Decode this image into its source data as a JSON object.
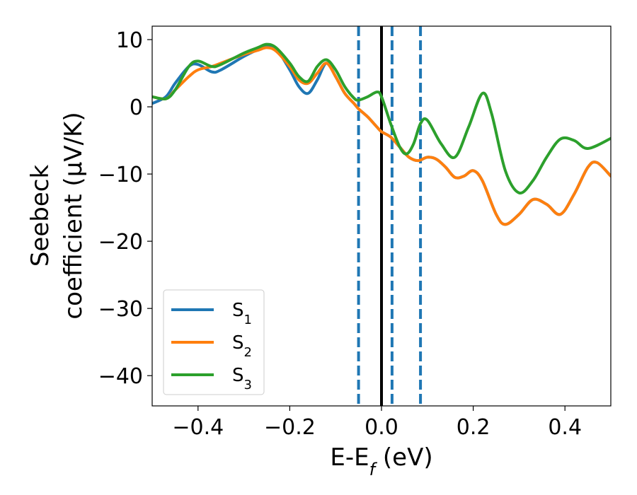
{
  "chart_data": {
    "type": "line",
    "title": "",
    "xlabel": {
      "main": "E-E",
      "sub": "f",
      "unit": " (eV)"
    },
    "ylabel": {
      "line1": "Seebeck",
      "line2": "coefficient  (μV/K)"
    },
    "xlim": [
      -0.5,
      0.5
    ],
    "ylim": [
      -44.5,
      12
    ],
    "xticks": [
      -0.4,
      -0.2,
      0.0,
      0.2,
      0.4
    ],
    "xtick_labels": [
      "−0.4",
      "−0.2",
      "0.0",
      "0.2",
      "0.4"
    ],
    "yticks": [
      10,
      0,
      -10,
      -20,
      -30,
      -40
    ],
    "ytick_labels": [
      "10",
      "0",
      "−10",
      "−20",
      "−30",
      "−40"
    ],
    "grid": false,
    "legend_position": "lower-left",
    "colors": {
      "S1": "#1f77b4",
      "S2": "#ff7f0e",
      "S3": "#2ca02c",
      "vline_dashed": "#1f77b4",
      "vline_solid": "#000000"
    },
    "series": [
      {
        "name": "S1",
        "base": "S",
        "sub": "1",
        "color": "#1f77b4",
        "x": [
          -0.5,
          -0.47,
          -0.45,
          -0.42,
          -0.4,
          -0.37,
          -0.35,
          -0.3,
          -0.27,
          -0.25,
          -0.23,
          -0.2,
          -0.18,
          -0.16,
          -0.14,
          -0.12,
          -0.1,
          -0.08,
          -0.06,
          -0.05,
          -0.03,
          -0.01,
          0.0,
          0.02,
          0.04,
          0.06,
          0.08,
          0.1,
          0.12,
          0.14,
          0.16,
          0.18,
          0.2,
          0.22,
          0.25,
          0.27,
          0.3,
          0.33,
          0.36,
          0.39,
          0.42,
          0.45,
          0.47,
          0.5
        ],
        "y": [
          0.5,
          1.5,
          3.5,
          6.0,
          6.3,
          5.2,
          5.5,
          7.5,
          8.5,
          9.0,
          8.7,
          5.5,
          3.0,
          2.0,
          4.0,
          6.5,
          4.5,
          2.0,
          0.5,
          -0.3,
          -1.5,
          -3.0,
          -3.7,
          -4.5,
          -6.0,
          -7.5,
          -8.0,
          -7.5,
          -7.8,
          -9.0,
          -10.5,
          -10.3,
          -9.5,
          -11.0,
          -16.0,
          -17.5,
          -16.0,
          -13.8,
          -14.5,
          -16.0,
          -13.0,
          -9.0,
          -8.3,
          -10.3
        ]
      },
      {
        "name": "S2",
        "base": "S",
        "sub": "2",
        "color": "#ff7f0e",
        "x": [
          -0.5,
          -0.47,
          -0.45,
          -0.42,
          -0.4,
          -0.37,
          -0.35,
          -0.3,
          -0.27,
          -0.25,
          -0.23,
          -0.2,
          -0.18,
          -0.16,
          -0.14,
          -0.12,
          -0.1,
          -0.08,
          -0.06,
          -0.05,
          -0.03,
          -0.01,
          0.0,
          0.02,
          0.04,
          0.06,
          0.08,
          0.1,
          0.12,
          0.14,
          0.16,
          0.18,
          0.2,
          0.22,
          0.25,
          0.27,
          0.3,
          0.33,
          0.36,
          0.39,
          0.42,
          0.45,
          0.47,
          0.5
        ],
        "y": [
          1.5,
          1.2,
          2.5,
          4.5,
          5.5,
          6.0,
          6.5,
          7.8,
          8.4,
          8.8,
          8.3,
          6.0,
          4.0,
          3.5,
          5.0,
          6.5,
          4.5,
          2.0,
          0.5,
          -0.3,
          -1.5,
          -3.0,
          -3.7,
          -4.5,
          -6.0,
          -7.5,
          -8.0,
          -7.5,
          -7.8,
          -9.0,
          -10.5,
          -10.3,
          -9.5,
          -11.0,
          -16.0,
          -17.5,
          -16.0,
          -13.8,
          -14.5,
          -16.0,
          -13.0,
          -9.0,
          -8.3,
          -10.3
        ]
      },
      {
        "name": "S3",
        "base": "S",
        "sub": "3",
        "color": "#2ca02c",
        "x": [
          -0.5,
          -0.47,
          -0.45,
          -0.42,
          -0.4,
          -0.37,
          -0.35,
          -0.3,
          -0.27,
          -0.25,
          -0.23,
          -0.2,
          -0.18,
          -0.16,
          -0.14,
          -0.12,
          -0.1,
          -0.08,
          -0.06,
          -0.05,
          -0.03,
          -0.01,
          0.0,
          0.02,
          0.04,
          0.055,
          0.07,
          0.085,
          0.1,
          0.13,
          0.16,
          0.19,
          0.22,
          0.24,
          0.27,
          0.3,
          0.33,
          0.36,
          0.39,
          0.42,
          0.45,
          0.5
        ],
        "y": [
          1.5,
          1.2,
          2.5,
          6.0,
          6.8,
          6.0,
          6.3,
          8.0,
          8.8,
          9.3,
          8.8,
          6.5,
          4.5,
          3.8,
          6.0,
          7.0,
          5.5,
          3.0,
          1.3,
          1.0,
          1.5,
          2.2,
          1.5,
          -2.5,
          -6.0,
          -7.0,
          -5.5,
          -2.5,
          -2.0,
          -5.5,
          -7.5,
          -3.0,
          2.0,
          -1.0,
          -9.5,
          -12.8,
          -11.0,
          -7.5,
          -4.8,
          -5.0,
          -6.2,
          -4.7
        ]
      }
    ],
    "vlines": [
      {
        "x": -0.05,
        "style": "dashed",
        "color": "#1f77b4"
      },
      {
        "x": 0.0,
        "style": "solid",
        "color": "#000000"
      },
      {
        "x": 0.023,
        "style": "dashed",
        "color": "#1f77b4"
      },
      {
        "x": 0.085,
        "style": "dashed",
        "color": "#1f77b4"
      }
    ]
  }
}
